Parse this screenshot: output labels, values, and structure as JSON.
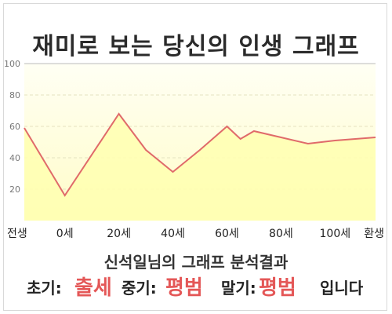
{
  "title": "재미로 보는 당신의 인생 그래프",
  "chart_data": {
    "type": "area",
    "categories": [
      "전생",
      "0세",
      "20세",
      "40세",
      "60세",
      "80세",
      "100세",
      "환생"
    ],
    "x": [
      -15,
      0,
      20,
      30,
      40,
      50,
      60,
      65,
      70,
      80,
      90,
      100,
      115
    ],
    "values": [
      59,
      16,
      68,
      45,
      31,
      45,
      60,
      52,
      57,
      53,
      49,
      51,
      53
    ],
    "yticks": [
      20,
      40,
      60,
      80,
      100
    ],
    "ylim": [
      0,
      100
    ],
    "grid": true,
    "line_color": "#e06a6a",
    "fill_color": "#ffffb0"
  },
  "summary": {
    "title": "신석일님의 그래프 분석결과",
    "early_label": "초기:",
    "early_value": "출세",
    "mid_label": "중기:",
    "mid_value": "평범",
    "late_label": "말기:",
    "late_value": "평범",
    "ending": "입니다"
  }
}
